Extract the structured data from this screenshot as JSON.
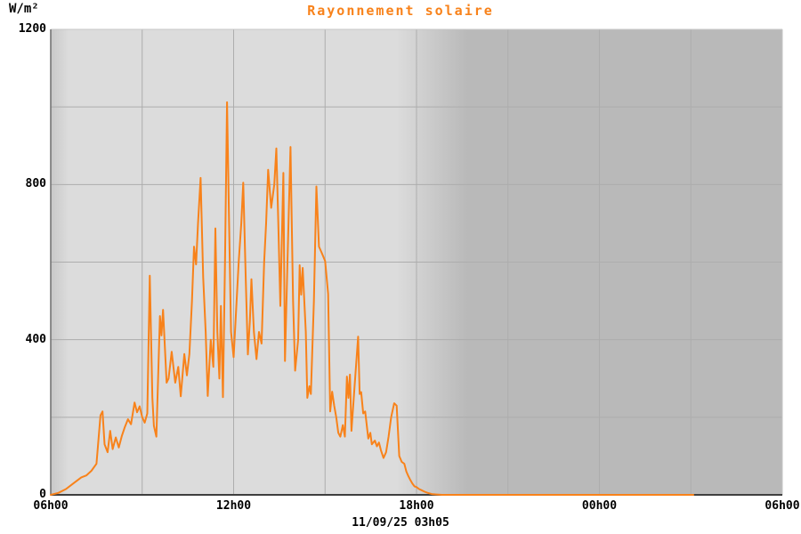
{
  "header": {
    "title": "Rayonnement solaire",
    "unit_label": "W/m²"
  },
  "footer": {
    "timestamp": "11/09/25 03h05"
  },
  "colors": {
    "line": "#F8821A",
    "title": "#F8821A",
    "day_bg": "#dcdcdc",
    "night_bg": "#b9b9b9",
    "dawn_edge": "#c8c8c8",
    "grid": "#adadad",
    "border": "#c6c6c6",
    "axis_left": "#6e6e6e",
    "axis_bottom": "#3f3f3f",
    "label": "#000000"
  },
  "chart_data": {
    "type": "line",
    "title": "Rayonnement solaire",
    "ylabel": "W/m²",
    "xlabel": "",
    "x_unit": "minutes since 06h00",
    "xlim": [
      0,
      1440
    ],
    "ylim": [
      0,
      1200
    ],
    "y_tick_values": [
      0,
      400,
      800,
      1200
    ],
    "y_grid_step": 200,
    "x_tick_labels": [
      "06h00",
      "12h00",
      "18h00",
      "00h00",
      "06h00"
    ],
    "x_tick_minutes": [
      0,
      360,
      720,
      1080,
      1440
    ],
    "x_grid_step_minutes": 180,
    "grid": true,
    "legend": false,
    "timestamp": "11/09/25 03h05",
    "shading": {
      "dawn_dark_until_min": 35,
      "sunset_fade_start_min": 680,
      "sunset_fade_end_min": 820
    },
    "series": [
      {
        "name": "Rayonnement solaire",
        "color": "#F8821A",
        "points_min_value": [
          [
            0,
            0
          ],
          [
            15,
            5
          ],
          [
            30,
            15
          ],
          [
            45,
            30
          ],
          [
            60,
            45
          ],
          [
            70,
            50
          ],
          [
            80,
            62
          ],
          [
            90,
            80
          ],
          [
            98,
            205
          ],
          [
            102,
            215
          ],
          [
            106,
            130
          ],
          [
            112,
            110
          ],
          [
            117,
            165
          ],
          [
            122,
            118
          ],
          [
            128,
            148
          ],
          [
            134,
            122
          ],
          [
            140,
            152
          ],
          [
            146,
            175
          ],
          [
            152,
            195
          ],
          [
            158,
            182
          ],
          [
            165,
            238
          ],
          [
            170,
            213
          ],
          [
            175,
            228
          ],
          [
            180,
            200
          ],
          [
            185,
            186
          ],
          [
            190,
            210
          ],
          [
            195,
            565
          ],
          [
            200,
            250
          ],
          [
            203,
            178
          ],
          [
            208,
            150
          ],
          [
            215,
            461
          ],
          [
            218,
            411
          ],
          [
            221,
            477
          ],
          [
            228,
            289
          ],
          [
            232,
            300
          ],
          [
            238,
            369
          ],
          [
            245,
            289
          ],
          [
            251,
            330
          ],
          [
            256,
            254
          ],
          [
            263,
            363
          ],
          [
            268,
            308
          ],
          [
            273,
            363
          ],
          [
            278,
            500
          ],
          [
            282,
            640
          ],
          [
            286,
            594
          ],
          [
            290,
            700
          ],
          [
            295,
            817
          ],
          [
            300,
            560
          ],
          [
            305,
            420
          ],
          [
            309,
            255
          ],
          [
            315,
            400
          ],
          [
            320,
            330
          ],
          [
            324,
            687
          ],
          [
            328,
            420
          ],
          [
            332,
            300
          ],
          [
            335,
            487
          ],
          [
            339,
            252
          ],
          [
            343,
            600
          ],
          [
            347,
            1012
          ],
          [
            351,
            700
          ],
          [
            355,
            420
          ],
          [
            360,
            355
          ],
          [
            365,
            480
          ],
          [
            370,
            600
          ],
          [
            375,
            700
          ],
          [
            379,
            805
          ],
          [
            384,
            550
          ],
          [
            388,
            362
          ],
          [
            392,
            450
          ],
          [
            395,
            556
          ],
          [
            400,
            420
          ],
          [
            405,
            350
          ],
          [
            410,
            420
          ],
          [
            415,
            390
          ],
          [
            420,
            600
          ],
          [
            424,
            700
          ],
          [
            428,
            838
          ],
          [
            434,
            740
          ],
          [
            440,
            800
          ],
          [
            444,
            893
          ],
          [
            448,
            700
          ],
          [
            452,
            487
          ],
          [
            458,
            830
          ],
          [
            461,
            345
          ],
          [
            466,
            600
          ],
          [
            472,
            897
          ],
          [
            477,
            500
          ],
          [
            481,
            320
          ],
          [
            487,
            400
          ],
          [
            490,
            592
          ],
          [
            493,
            516
          ],
          [
            496,
            585
          ],
          [
            502,
            420
          ],
          [
            505,
            250
          ],
          [
            509,
            280
          ],
          [
            512,
            260
          ],
          [
            518,
            500
          ],
          [
            523,
            795
          ],
          [
            528,
            640
          ],
          [
            533,
            625
          ],
          [
            540,
            603
          ],
          [
            546,
            518
          ],
          [
            550,
            215
          ],
          [
            554,
            266
          ],
          [
            558,
            230
          ],
          [
            562,
            200
          ],
          [
            566,
            160
          ],
          [
            570,
            150
          ],
          [
            575,
            180
          ],
          [
            579,
            150
          ],
          [
            583,
            305
          ],
          [
            586,
            250
          ],
          [
            589,
            310
          ],
          [
            592,
            165
          ],
          [
            598,
            280
          ],
          [
            605,
            408
          ],
          [
            608,
            260
          ],
          [
            611,
            265
          ],
          [
            615,
            210
          ],
          [
            619,
            215
          ],
          [
            625,
            145
          ],
          [
            629,
            160
          ],
          [
            632,
            130
          ],
          [
            638,
            140
          ],
          [
            642,
            125
          ],
          [
            646,
            135
          ],
          [
            650,
            115
          ],
          [
            655,
            95
          ],
          [
            660,
            110
          ],
          [
            665,
            150
          ],
          [
            670,
            200
          ],
          [
            676,
            236
          ],
          [
            681,
            230
          ],
          [
            686,
            100
          ],
          [
            691,
            85
          ],
          [
            696,
            80
          ],
          [
            700,
            60
          ],
          [
            704,
            48
          ],
          [
            708,
            38
          ],
          [
            712,
            29
          ],
          [
            716,
            22
          ],
          [
            720,
            20
          ],
          [
            725,
            15
          ],
          [
            730,
            12
          ],
          [
            736,
            8
          ],
          [
            742,
            5
          ],
          [
            750,
            2
          ],
          [
            760,
            1
          ],
          [
            770,
            0
          ],
          [
            800,
            0
          ],
          [
            840,
            0
          ],
          [
            900,
            0
          ],
          [
            960,
            0
          ],
          [
            1020,
            0
          ],
          [
            1080,
            0
          ],
          [
            1140,
            0
          ],
          [
            1200,
            0
          ],
          [
            1260,
            0
          ],
          [
            1265,
            0
          ]
        ]
      }
    ]
  }
}
